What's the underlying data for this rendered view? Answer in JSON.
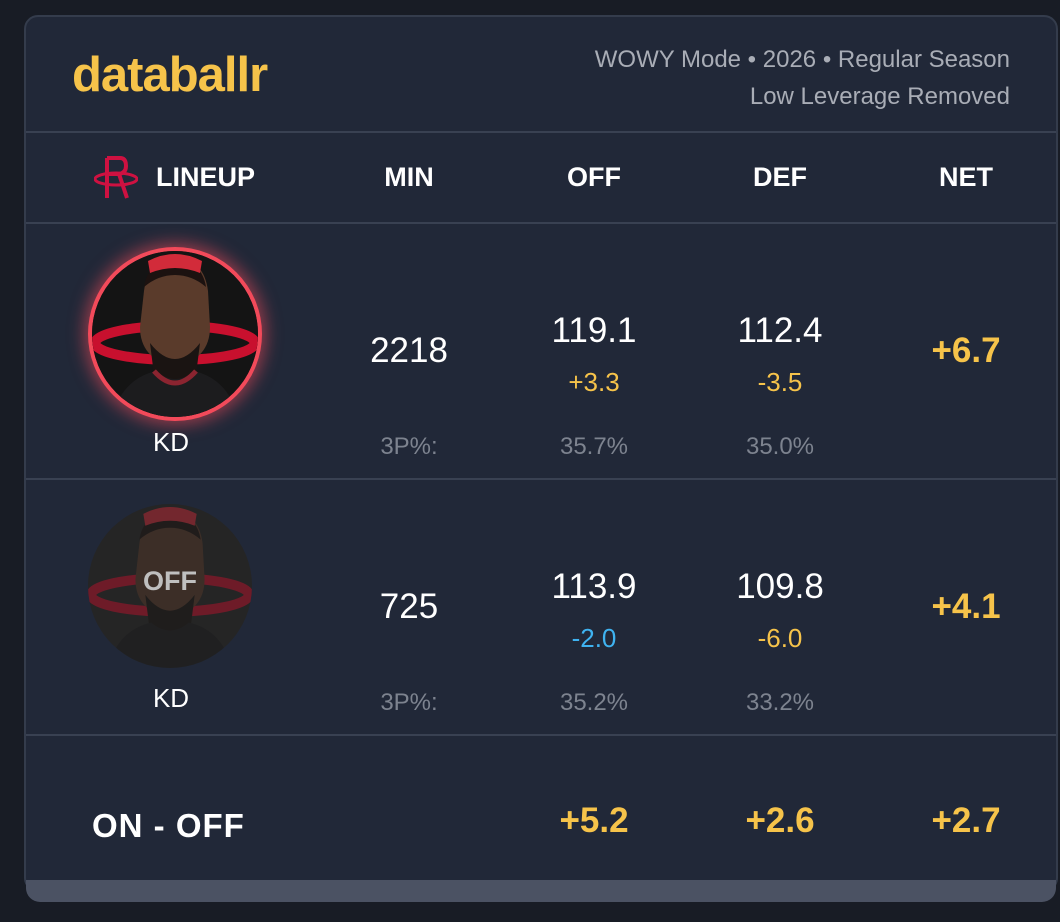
{
  "brand": {
    "logo": "databallr"
  },
  "filters": {
    "line1": "WOWY Mode • 2026 • Regular Season",
    "line2": "Low Leverage Removed"
  },
  "header": {
    "lineup": "LINEUP",
    "min": "MIN",
    "off": "OFF",
    "def": "DEF",
    "net": "NET"
  },
  "rows": [
    {
      "player": "KD",
      "status": "on",
      "min": "2218",
      "off": "119.1",
      "off_delta": "+3.3",
      "def": "112.4",
      "def_delta": "-3.5",
      "net": "+6.7",
      "threep_label": "3P%:",
      "threep_off": "35.7%",
      "threep_def": "35.0%"
    },
    {
      "player": "KD",
      "status": "off",
      "overlay": "OFF",
      "min": "725",
      "off": "113.9",
      "off_delta": "-2.0",
      "def": "109.8",
      "def_delta": "-6.0",
      "net": "+4.1",
      "threep_label": "3P%:",
      "threep_off": "35.2%",
      "threep_def": "33.2%"
    }
  ],
  "summary": {
    "label": "ON - OFF",
    "off": "+5.2",
    "def": "+2.6",
    "net": "+2.7"
  },
  "colors": {
    "accent_gold": "#f6c34a",
    "accent_blue": "#3fb3f1",
    "team_red": "#ce1141",
    "on_ring": "#f24a5a"
  },
  "icons": {
    "team_logo": "rockets-logo-icon",
    "player_photo": "player-headshot"
  }
}
